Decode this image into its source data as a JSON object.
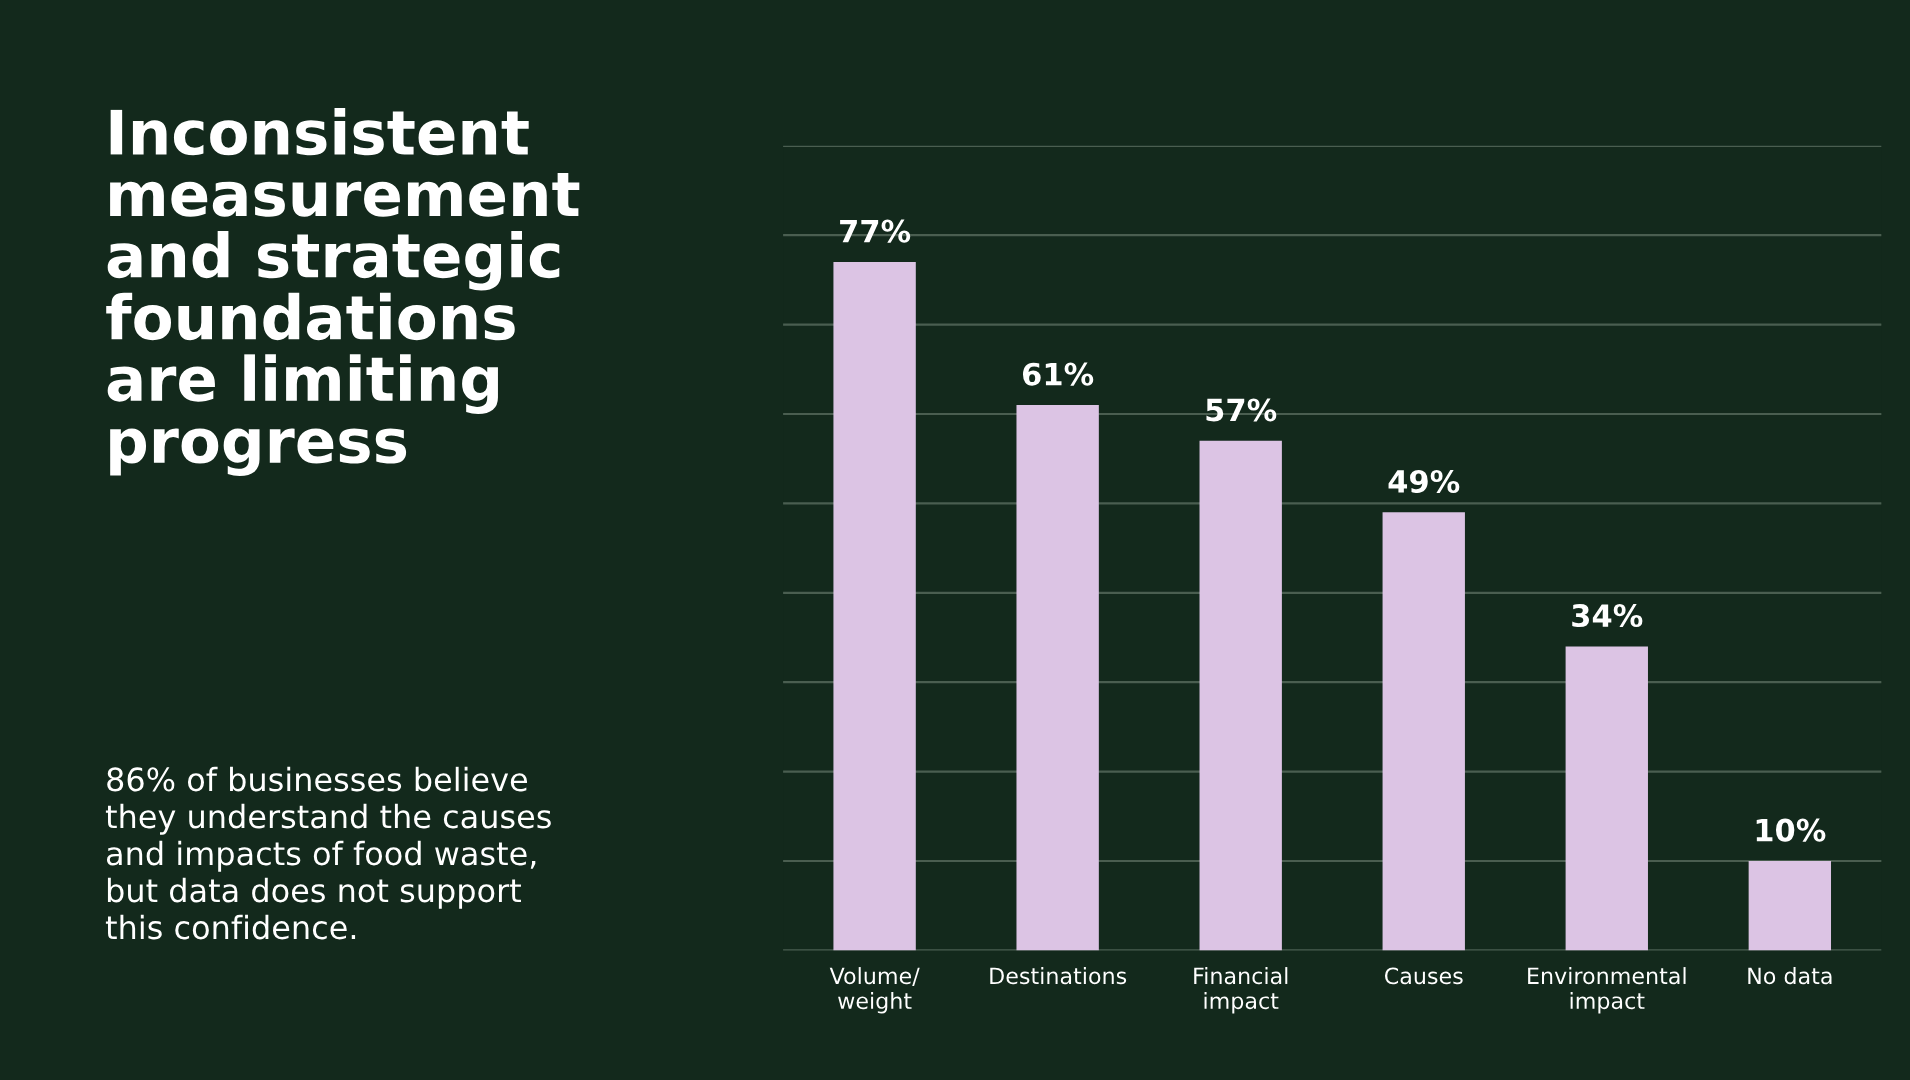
{
  "chart_data": {
    "type": "bar",
    "title": "Inconsistent\nmeasurement\nand strategic\nfoundations\nare limiting\nprogress",
    "subtitle": "86% of businesses believe\nthey understand the causes\nand impacts of food waste,\nbut data does not support\nthis confidence.",
    "categories": [
      "Volume/\nweight",
      "Destinations",
      "Financial\nimpact",
      "Causes",
      "Environmental\nimpact",
      "No data"
    ],
    "values": [
      77,
      61,
      57,
      49,
      34,
      10
    ],
    "value_labels": [
      "77%",
      "61%",
      "57%",
      "49%",
      "34%",
      "10%"
    ],
    "color": "#dcc4e4",
    "ylim": [
      0,
      90
    ],
    "yticks": [
      {
        "value": 0,
        "label": null
      },
      {
        "value": 10,
        "label": null
      },
      {
        "value": 20,
        "label": null
      },
      {
        "value": 30,
        "label": null
      },
      {
        "value": 40,
        "label": null
      },
      {
        "value": 50,
        "label": null
      },
      {
        "value": 60,
        "label": null
      },
      {
        "value": 70,
        "label": null
      },
      {
        "value": 80,
        "label": null
      },
      {
        "value": 90,
        "label": null
      }
    ],
    "grid": "y",
    "tick_labels": "x"
  }
}
